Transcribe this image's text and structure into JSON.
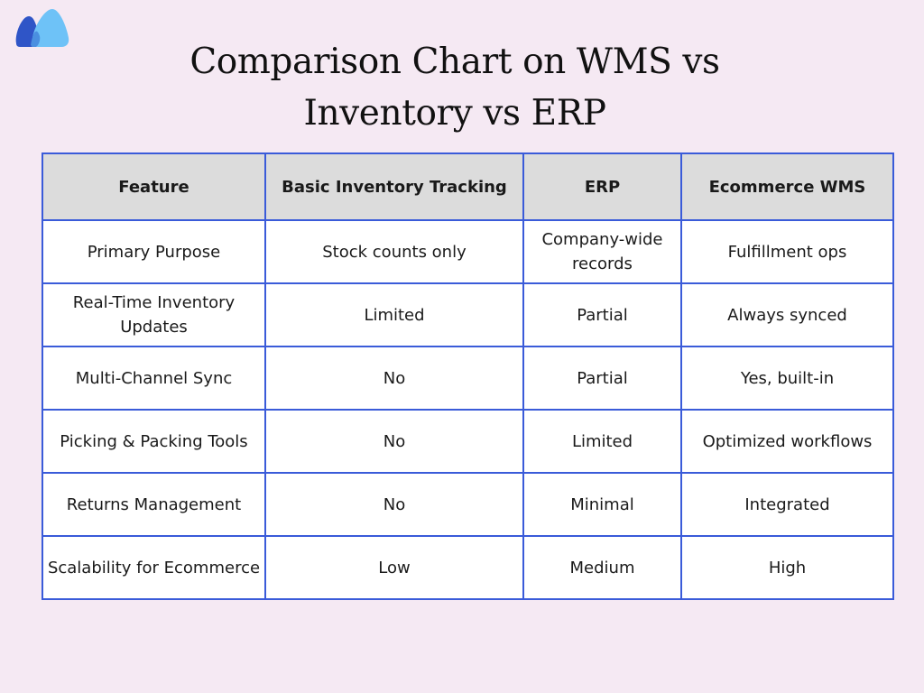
{
  "title": {
    "line1": "Comparison Chart on  WMS vs",
    "line2": "Inventory vs ERP"
  },
  "logo": {
    "icon": "brand-logo-icon",
    "colors": [
      "#2f55c7",
      "#6ec2f7"
    ]
  },
  "colors": {
    "background": "#f5e9f3",
    "table_border": "#3a5bd9",
    "header_background": "#dcdcdc",
    "cell_background": "#ffffff"
  },
  "table": {
    "headers": [
      "Feature",
      "Basic Inventory Tracking",
      "ERP",
      "Ecommerce WMS"
    ],
    "rows": [
      [
        "Primary Purpose",
        "Stock counts only",
        "Company-wide records",
        "Fulfillment ops"
      ],
      [
        "Real-Time Inventory Updates",
        "Limited",
        "Partial",
        "Always synced"
      ],
      [
        "Multi-Channel Sync",
        "No",
        "Partial",
        "Yes, built-in"
      ],
      [
        "Picking & Packing Tools",
        "No",
        "Limited",
        "Optimized workflows"
      ],
      [
        "Returns Management",
        "No",
        "Minimal",
        "Integrated"
      ],
      [
        "Scalability for Ecommerce",
        "Low",
        "Medium",
        "High"
      ]
    ]
  }
}
